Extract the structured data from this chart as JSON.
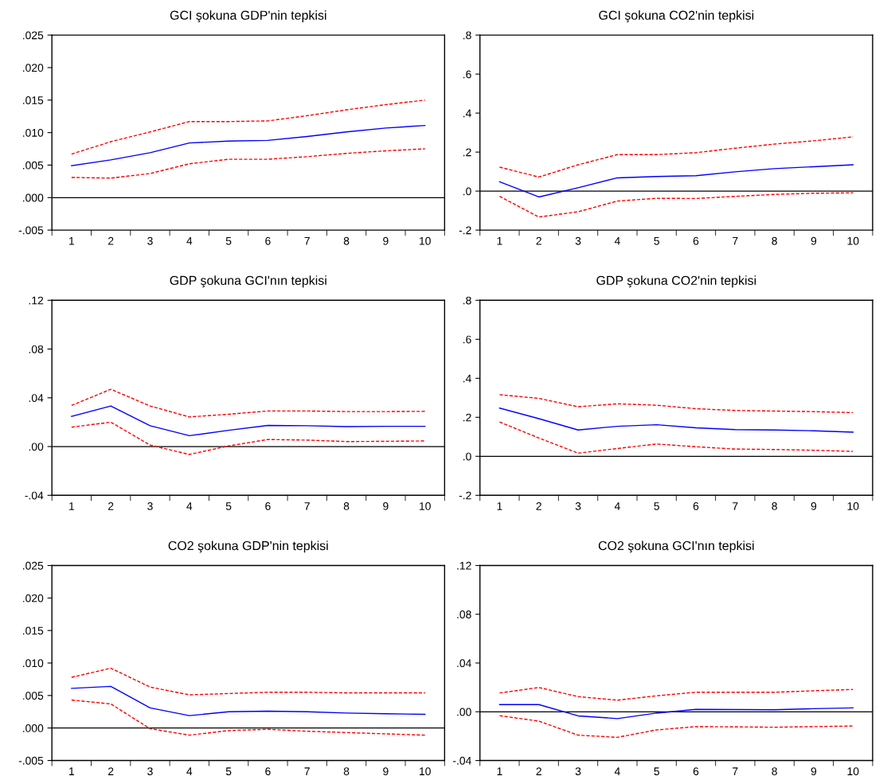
{
  "chart_data": [
    {
      "type": "line",
      "title": "GCI şokuna GDP'nin tepkisi",
      "categories": [
        "1",
        "2",
        "3",
        "4",
        "5",
        "6",
        "7",
        "8",
        "9",
        "10"
      ],
      "ylim": [
        -0.005,
        0.025
      ],
      "yticks": [
        {
          "value": -0.005,
          "label": "-.005"
        },
        {
          "value": 0,
          "label": ".000"
        },
        {
          "value": 0.005,
          "label": ".005"
        },
        {
          "value": 0.01,
          "label": ".010"
        },
        {
          "value": 0.015,
          "label": ".015"
        },
        {
          "value": 0.02,
          "label": ".020"
        },
        {
          "value": 0.025,
          "label": ".025"
        }
      ],
      "ref_lines": [
        {
          "axis": "y",
          "value": 0,
          "color": "#000000",
          "line_style": "solid"
        }
      ],
      "series": [
        {
          "color": "#0000ff",
          "line_style": "solid",
          "values": [
            0.0049,
            0.0058,
            0.0069,
            0.0084,
            0.0087,
            0.0088,
            0.0094,
            0.0101,
            0.0107,
            0.0111
          ]
        },
        {
          "color": "#ff0000",
          "line_style": "dashed",
          "values": [
            0.0067,
            0.0086,
            0.0101,
            0.0117,
            0.0117,
            0.0118,
            0.0126,
            0.0135,
            0.0143,
            0.015
          ]
        },
        {
          "color": "#ff0000",
          "line_style": "dashed",
          "values": [
            0.0031,
            0.003,
            0.0037,
            0.0052,
            0.0059,
            0.0059,
            0.0063,
            0.0068,
            0.0072,
            0.0075
          ]
        }
      ]
    },
    {
      "type": "line",
      "title": "GCI şokuna CO2'nin tepkisi",
      "categories": [
        "1",
        "2",
        "3",
        "4",
        "5",
        "6",
        "7",
        "8",
        "9",
        "10"
      ],
      "ylim": [
        -0.2,
        0.8
      ],
      "yticks": [
        {
          "value": -0.2,
          "label": "-.2"
        },
        {
          "value": 0,
          "label": ".0"
        },
        {
          "value": 0.2,
          "label": ".2"
        },
        {
          "value": 0.4,
          "label": ".4"
        },
        {
          "value": 0.6,
          "label": ".6"
        },
        {
          "value": 0.8,
          "label": ".8"
        }
      ],
      "ref_lines": [
        {
          "axis": "y",
          "value": 0,
          "color": "#000000",
          "line_style": "solid"
        }
      ],
      "series": [
        {
          "color": "#0000ff",
          "line_style": "solid",
          "values": [
            0.048,
            -0.03,
            0.017,
            0.068,
            0.075,
            0.079,
            0.099,
            0.115,
            0.125,
            0.135
          ]
        },
        {
          "color": "#ff0000",
          "line_style": "dashed",
          "values": [
            0.123,
            0.072,
            0.135,
            0.187,
            0.187,
            0.197,
            0.22,
            0.241,
            0.258,
            0.278
          ]
        },
        {
          "color": "#ff0000",
          "line_style": "dashed",
          "values": [
            -0.027,
            -0.133,
            -0.106,
            -0.051,
            -0.037,
            -0.038,
            -0.027,
            -0.017,
            -0.011,
            -0.009
          ]
        }
      ]
    },
    {
      "type": "line",
      "title": "GDP şokuna GCI'nın tepkisi",
      "categories": [
        "1",
        "2",
        "3",
        "4",
        "5",
        "6",
        "7",
        "8",
        "9",
        "10"
      ],
      "ylim": [
        -0.04,
        0.12
      ],
      "yticks": [
        {
          "value": -0.04,
          "label": "-.04"
        },
        {
          "value": 0,
          "label": ".00"
        },
        {
          "value": 0.04,
          "label": ".04"
        },
        {
          "value": 0.08,
          "label": ".08"
        },
        {
          "value": 0.12,
          "label": ".12"
        }
      ],
      "ref_lines": [
        {
          "axis": "y",
          "value": 0,
          "color": "#000000",
          "line_style": "solid"
        }
      ],
      "series": [
        {
          "color": "#0000ff",
          "line_style": "solid",
          "values": [
            0.0248,
            0.0333,
            0.0171,
            0.0089,
            0.0133,
            0.0173,
            0.0171,
            0.0164,
            0.0166,
            0.0166
          ]
        },
        {
          "color": "#ff0000",
          "line_style": "dashed",
          "values": [
            0.0337,
            0.047,
            0.0333,
            0.0243,
            0.0265,
            0.0292,
            0.0292,
            0.0287,
            0.0287,
            0.0289
          ]
        },
        {
          "color": "#ff0000",
          "line_style": "dashed",
          "values": [
            0.0159,
            0.02,
            0.0012,
            -0.0065,
            0.0005,
            0.0058,
            0.0053,
            0.0041,
            0.0043,
            0.0046
          ]
        }
      ]
    },
    {
      "type": "line",
      "title": "GDP şokuna CO2'nin tepkisi",
      "categories": [
        "1",
        "2",
        "3",
        "4",
        "5",
        "6",
        "7",
        "8",
        "9",
        "10"
      ],
      "ylim": [
        -0.2,
        0.8
      ],
      "yticks": [
        {
          "value": -0.2,
          "label": "-.2"
        },
        {
          "value": 0,
          "label": ".0"
        },
        {
          "value": 0.2,
          "label": ".2"
        },
        {
          "value": 0.4,
          "label": ".4"
        },
        {
          "value": 0.6,
          "label": ".6"
        },
        {
          "value": 0.8,
          "label": ".8"
        }
      ],
      "ref_lines": [
        {
          "axis": "y",
          "value": 0,
          "color": "#000000",
          "line_style": "solid"
        }
      ],
      "series": [
        {
          "color": "#0000ff",
          "line_style": "solid",
          "values": [
            0.247,
            0.193,
            0.135,
            0.154,
            0.162,
            0.146,
            0.137,
            0.135,
            0.131,
            0.124
          ]
        },
        {
          "color": "#ff0000",
          "line_style": "dashed",
          "values": [
            0.316,
            0.297,
            0.254,
            0.269,
            0.262,
            0.244,
            0.235,
            0.232,
            0.229,
            0.224
          ]
        },
        {
          "color": "#ff0000",
          "line_style": "dashed",
          "values": [
            0.176,
            0.094,
            0.016,
            0.04,
            0.063,
            0.049,
            0.037,
            0.035,
            0.031,
            0.025
          ]
        }
      ]
    },
    {
      "type": "line",
      "title": "CO2 şokuna GDP'nin tepkisi",
      "categories": [
        "1",
        "2",
        "3",
        "4",
        "5",
        "6",
        "7",
        "8",
        "9",
        "10"
      ],
      "ylim": [
        -0.005,
        0.025
      ],
      "yticks": [
        {
          "value": -0.005,
          "label": "-.005"
        },
        {
          "value": 0,
          "label": ".000"
        },
        {
          "value": 0.005,
          "label": ".005"
        },
        {
          "value": 0.01,
          "label": ".010"
        },
        {
          "value": 0.015,
          "label": ".015"
        },
        {
          "value": 0.02,
          "label": ".020"
        },
        {
          "value": 0.025,
          "label": ".025"
        }
      ],
      "ref_lines": [
        {
          "axis": "y",
          "value": 0,
          "color": "#000000",
          "line_style": "solid"
        }
      ],
      "series": [
        {
          "color": "#0000ff",
          "line_style": "solid",
          "values": [
            0.0061,
            0.0064,
            0.0031,
            0.0019,
            0.0025,
            0.0026,
            0.0025,
            0.0023,
            0.0022,
            0.0021
          ]
        },
        {
          "color": "#ff0000",
          "line_style": "dashed",
          "values": [
            0.0078,
            0.0092,
            0.0063,
            0.0051,
            0.0053,
            0.0055,
            0.0055,
            0.0054,
            0.0054,
            0.0054
          ]
        },
        {
          "color": "#ff0000",
          "line_style": "dashed",
          "values": [
            0.0043,
            0.0037,
            -0.0001,
            -0.0011,
            -0.0004,
            -0.0002,
            -0.0005,
            -0.0007,
            -0.0009,
            -0.0011
          ]
        }
      ]
    },
    {
      "type": "line",
      "title": "CO2 şokuna GCI'nın tepkisi",
      "categories": [
        "1",
        "2",
        "3",
        "4",
        "5",
        "6",
        "7",
        "8",
        "9",
        "10"
      ],
      "ylim": [
        -0.04,
        0.12
      ],
      "yticks": [
        {
          "value": -0.04,
          "label": "-.04"
        },
        {
          "value": 0,
          "label": ".00"
        },
        {
          "value": 0.04,
          "label": ".04"
        },
        {
          "value": 0.08,
          "label": ".08"
        },
        {
          "value": 0.12,
          "label": ".12"
        }
      ],
      "ref_lines": [
        {
          "axis": "y",
          "value": 0,
          "color": "#000000",
          "line_style": "solid"
        }
      ],
      "series": [
        {
          "color": "#0000ff",
          "line_style": "solid",
          "values": [
            0.0059,
            0.0059,
            -0.0034,
            -0.0056,
            -0.0011,
            0.002,
            0.0018,
            0.0016,
            0.0025,
            0.0032
          ]
        },
        {
          "color": "#ff0000",
          "line_style": "dashed",
          "values": [
            0.0154,
            0.0199,
            0.0124,
            0.0095,
            0.0131,
            0.016,
            0.016,
            0.016,
            0.0172,
            0.0183
          ]
        },
        {
          "color": "#ff0000",
          "line_style": "dashed",
          "values": [
            -0.0032,
            -0.0077,
            -0.0192,
            -0.021,
            -0.0149,
            -0.0122,
            -0.0124,
            -0.0127,
            -0.0122,
            -0.0117
          ]
        }
      ]
    }
  ]
}
